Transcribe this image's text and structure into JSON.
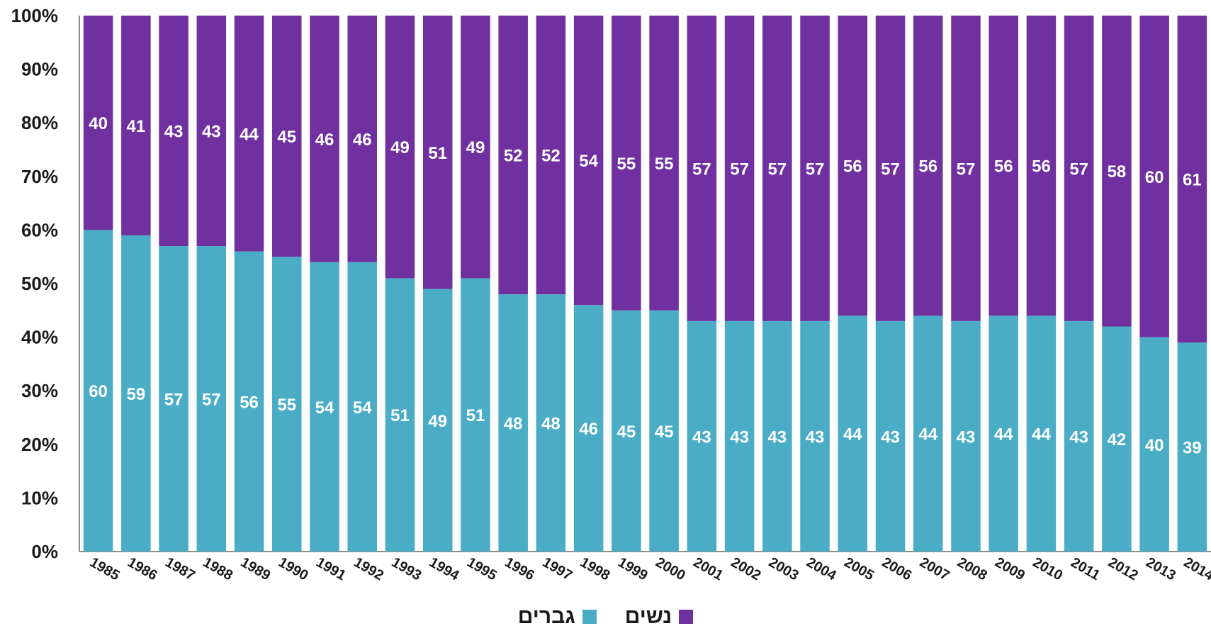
{
  "colors": {
    "women": "#7030A0",
    "men": "#4BACC6"
  },
  "chart_data": {
    "type": "bar",
    "stacked": true,
    "categories": [
      "1985",
      "1986",
      "1987",
      "1988",
      "1989",
      "1990",
      "1991",
      "1992",
      "1993",
      "1994",
      "1995",
      "1996",
      "1997",
      "1998",
      "1999",
      "2000",
      "2001",
      "2002",
      "2003",
      "2004",
      "2005",
      "2006",
      "2007",
      "2008",
      "2009",
      "2010",
      "2011",
      "2012",
      "2013",
      "2014"
    ],
    "series": [
      {
        "name": "גברים",
        "color": "#4BACC6",
        "values": [
          60,
          59,
          57,
          57,
          56,
          55,
          54,
          54,
          51,
          49,
          51,
          48,
          48,
          46,
          45,
          45,
          43,
          43,
          43,
          43,
          44,
          43,
          44,
          43,
          44,
          44,
          43,
          42,
          40,
          39
        ]
      },
      {
        "name": "נשים",
        "color": "#7030A0",
        "values": [
          40,
          41,
          43,
          43,
          44,
          45,
          46,
          46,
          49,
          51,
          49,
          52,
          52,
          54,
          55,
          55,
          57,
          57,
          57,
          57,
          56,
          57,
          56,
          57,
          56,
          56,
          57,
          58,
          60,
          61
        ]
      }
    ],
    "ylim": [
      0,
      100
    ],
    "yticks": [
      "0%",
      "10%",
      "20%",
      "30%",
      "40%",
      "50%",
      "60%",
      "70%",
      "80%",
      "90%",
      "100%"
    ],
    "legend": "bottom"
  },
  "legend": {
    "women_label": "נשים",
    "men_label": "גברים"
  }
}
